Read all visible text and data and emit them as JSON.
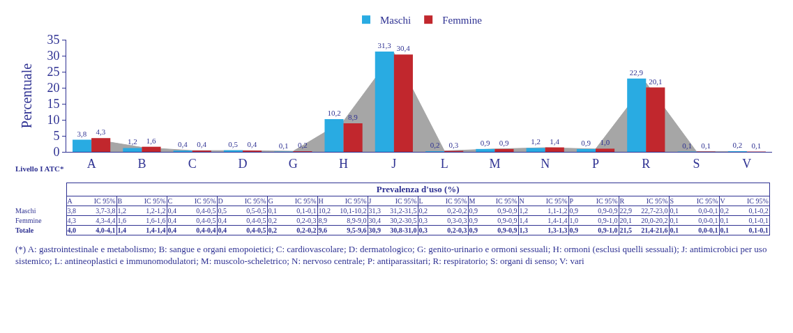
{
  "chart_data": {
    "type": "bar",
    "ylabel": "Percentuale",
    "categories": [
      "A",
      "B",
      "C",
      "D",
      "G",
      "H",
      "J",
      "L",
      "M",
      "N",
      "P",
      "R",
      "S",
      "V"
    ],
    "series": [
      {
        "name": "Maschi",
        "color": "#29abe2",
        "values": [
          3.8,
          1.2,
          0.4,
          0.5,
          0.1,
          10.2,
          31.3,
          0.2,
          0.9,
          1.2,
          0.9,
          22.9,
          0.1,
          0.2
        ],
        "value_labels": [
          "3,8",
          "1,2",
          "0,4",
          "0,5",
          "0,1",
          "10,2",
          "31,3",
          "0,2",
          "0,9",
          "1,2",
          "0,9",
          "22,9",
          "0,1",
          "0,2"
        ]
      },
      {
        "name": "Femmine",
        "color": "#c1272d",
        "values": [
          4.3,
          1.6,
          0.4,
          0.4,
          0.2,
          8.9,
          30.4,
          0.3,
          0.9,
          1.4,
          1.0,
          20.1,
          0.1,
          0.1
        ],
        "value_labels": [
          "4,3",
          "1,6",
          "0,4",
          "0,4",
          "0,2",
          "8,9",
          "30,4",
          "0,3",
          "0,9",
          "1,4",
          "1,0",
          "20,1",
          "0,1",
          "0,1"
        ]
      },
      {
        "type": "area",
        "color": "#a6a6a6",
        "values": [
          4.0,
          1.4,
          0.4,
          0.4,
          0.2,
          9.6,
          30.9,
          0.3,
          0.9,
          1.3,
          0.9,
          21.5,
          0.1,
          0.1
        ]
      }
    ],
    "ylim": [
      0,
      35
    ],
    "yticks": [
      0,
      5,
      10,
      15,
      20,
      25,
      30,
      35
    ],
    "legend": "top",
    "annotations": [
      "Livello I ATC*",
      "Prevalenza d'uso (%)",
      "IC 95%",
      "Totale",
      "(*) A: gastrointestinale e metabolismo; B: sangue e organi emopoietici; C: cardiovascolare; D: dermatologico; G: genito-urinario e ormoni sessuali; H: ormoni (esclusi quelli sessuali); J: antimicrobici per uso sistemico; L: antineoplastici e immunomodulatori; M: muscolo-scheletrico; N: nervoso centrale; P: antiparassitari; R: respiratorio; S: organi di senso; V: vari",
      "3,8",
      "3,7-3,8",
      "1,2",
      "1,2-1,2",
      "0,4",
      "0,4-0,5",
      "0,5",
      "0,5-0,5",
      "0,1",
      "0,1-0,1",
      "10,2",
      "10,1-10,2",
      "31,3",
      "31,2-31,5",
      "0,2",
      "0,2-0,2",
      "0,9",
      "0,9-0,9",
      "1,2",
      "1,1-1,2",
      "0,9",
      "0,9-0,9",
      "22,9",
      "22,7-23,0",
      "0,1",
      "0,0-0,1",
      "0,2",
      "0,1-0,2",
      "4,3",
      "4,3-4,4",
      "1,6",
      "1,6-1,6",
      "0,4",
      "0,4-0,5",
      "0,4",
      "0,4-0,5",
      "0,2",
      "0,2-0,3",
      "8,9",
      "8,9-9,0",
      "30,4",
      "30,2-30,5",
      "0,3",
      "0,3-0,3",
      "0,9",
      "0,9-0,9",
      "1,4",
      "1,4-1,4",
      "1,0",
      "0,9-1,0",
      "20,1",
      "20,0-20,2",
      "0,1",
      "0,0-0,1",
      "0,1",
      "0,1-0,1",
      "4,0",
      "4,0-4,1",
      "1,4",
      "1,4-1,4",
      "0,4",
      "0,4-0,4",
      "0,4",
      "0,4-0,5",
      "0,2",
      "0,2-0,2",
      "9,6",
      "9,5-9,6",
      "30,9",
      "30,8-31,0",
      "0,3",
      "0,2-0,3",
      "0,9",
      "0,9-0,9",
      "1,3",
      "1,3-1,3",
      "0,9",
      "0,9-1,0",
      "21,5",
      "21,4-21,6",
      "0,1",
      "0,0-0,1",
      "0,1",
      "0,1-0,1"
    ]
  }
}
